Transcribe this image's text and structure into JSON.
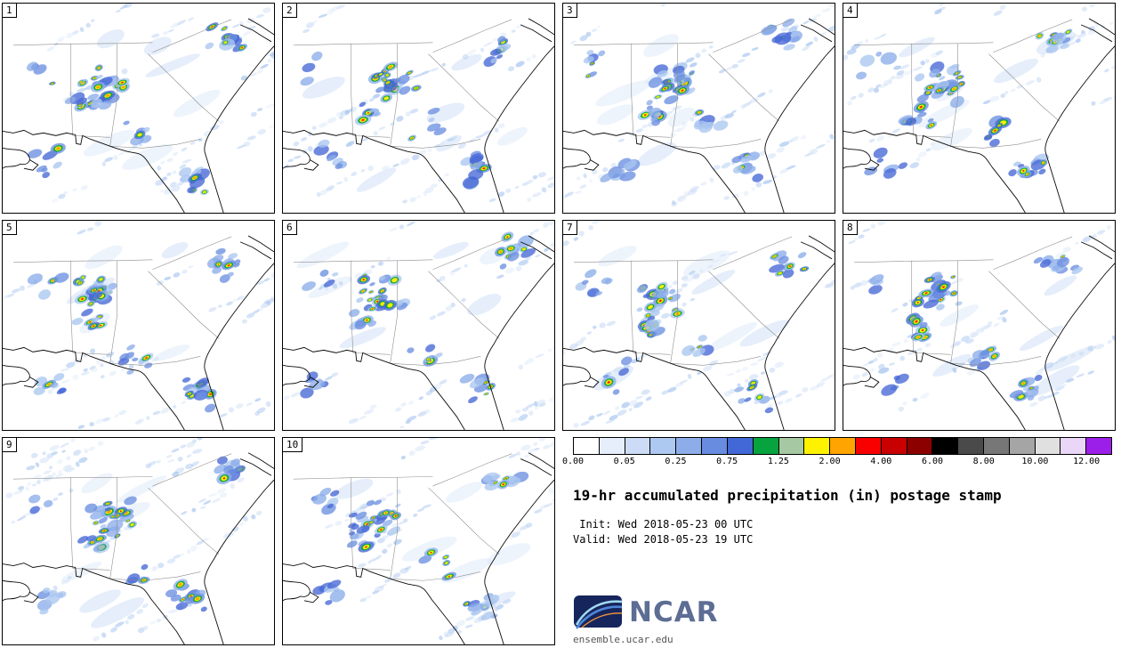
{
  "panels": [
    {
      "label": "1"
    },
    {
      "label": "2"
    },
    {
      "label": "3"
    },
    {
      "label": "4"
    },
    {
      "label": "5"
    },
    {
      "label": "6"
    },
    {
      "label": "7"
    },
    {
      "label": "8"
    },
    {
      "label": "9"
    },
    {
      "label": "10"
    }
  ],
  "legend": {
    "title": "19-hr accumulated precipitation (in) postage stamp",
    "init_line": " Init: Wed 2018-05-23 00 UTC",
    "valid_line": "Valid: Wed 2018-05-23 19 UTC",
    "logo_text": "NCAR",
    "site": "ensemble.ucar.edu",
    "colorbar_ticks": [
      "0.00",
      "0.05",
      "0.25",
      "0.75",
      "1.25",
      "2.00",
      "4.00",
      "6.00",
      "8.00",
      "10.00",
      "12.00"
    ],
    "colorbar_colors": [
      "#ffffff",
      "#e6eefb",
      "#ccdcf6",
      "#aec9f1",
      "#8cade9",
      "#678ce0",
      "#4168d6",
      "#07a33e",
      "#a6c8a2",
      "#fff200",
      "#ffa400",
      "#f80000",
      "#c80000",
      "#8c0000",
      "#000000",
      "#4a4a4a",
      "#777777",
      "#a5a5a5",
      "#e0e0e0",
      "#ead6f6",
      "#9b1fe8"
    ]
  },
  "chart_data": {
    "type": "heatmap",
    "subtype": "ensemble postage stamp precipitation maps (10 members)",
    "title": "19-hr accumulated precipitation (in) postage stamp",
    "init": "Init: Wed 2018-05-23 00 UTC",
    "valid": "Valid: Wed 2018-05-23 19 UTC",
    "panels": [
      "1",
      "2",
      "3",
      "4",
      "5",
      "6",
      "7",
      "8",
      "9",
      "10"
    ],
    "units": "in",
    "colorbar": {
      "tick_labels": [
        "0.00",
        "0.05",
        "0.25",
        "0.75",
        "1.25",
        "2.00",
        "4.00",
        "6.00",
        "8.00",
        "10.00",
        "12.00"
      ],
      "colors": [
        "#ffffff",
        "#e6eefb",
        "#ccdcf6",
        "#aec9f1",
        "#8cade9",
        "#678ce0",
        "#4168d6",
        "#07a33e",
        "#a6c8a2",
        "#fff200",
        "#ffa400",
        "#f80000",
        "#c80000",
        "#8c0000",
        "#000000",
        "#4a4a4a",
        "#777777",
        "#a5a5a5",
        "#e0e0e0",
        "#ead6f6",
        "#9b1fe8"
      ],
      "orientation": "horizontal"
    },
    "source_text": "ensemble.ucar.edu"
  }
}
